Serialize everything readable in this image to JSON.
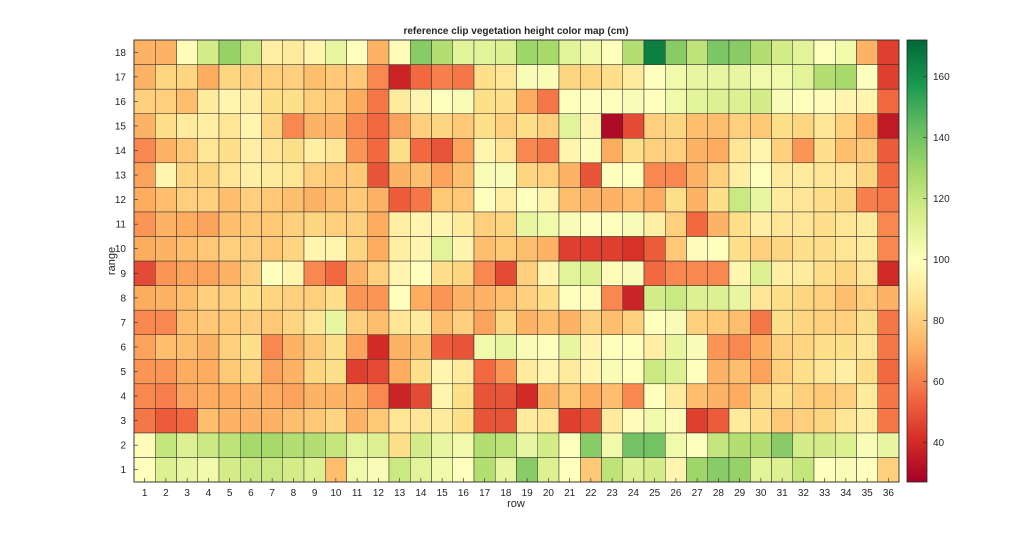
{
  "chart_data": {
    "type": "heatmap",
    "title": "reference clip vegetation height color map (cm)",
    "xlabel": "row",
    "ylabel": "range",
    "x": [
      1,
      2,
      3,
      4,
      5,
      6,
      7,
      8,
      9,
      10,
      11,
      12,
      13,
      14,
      15,
      16,
      17,
      18,
      19,
      20,
      21,
      22,
      23,
      24,
      25,
      26,
      27,
      28,
      29,
      30,
      31,
      32,
      33,
      34,
      35,
      36
    ],
    "y": [
      1,
      2,
      3,
      4,
      5,
      6,
      7,
      8,
      9,
      10,
      11,
      12,
      13,
      14,
      15,
      16,
      17,
      18
    ],
    "colorbar": {
      "min": 27,
      "max": 172,
      "ticks": [
        40,
        60,
        80,
        100,
        120,
        140,
        160
      ],
      "colormap": "RdYlGn"
    },
    "grid": true,
    "values": [
      [
        100,
        112,
        108,
        105,
        115,
        118,
        118,
        115,
        112,
        75,
        105,
        102,
        118,
        110,
        105,
        100,
        125,
        108,
        135,
        112,
        100,
        78,
        122,
        112,
        115,
        95,
        130,
        135,
        132,
        110,
        112,
        120,
        100,
        102,
        100,
        80
      ],
      [
        98,
        120,
        112,
        118,
        122,
        128,
        128,
        125,
        125,
        120,
        110,
        112,
        85,
        115,
        108,
        105,
        125,
        122,
        108,
        115,
        100,
        135,
        105,
        140,
        140,
        105,
        100,
        120,
        125,
        125,
        135,
        115,
        115,
        112,
        102,
        108
      ],
      [
        58,
        52,
        55,
        75,
        72,
        72,
        72,
        75,
        78,
        82,
        72,
        78,
        88,
        88,
        90,
        85,
        50,
        50,
        90,
        88,
        45,
        50,
        90,
        98,
        105,
        98,
        45,
        52,
        90,
        85,
        78,
        80,
        82,
        88,
        92,
        58
      ],
      [
        62,
        60,
        68,
        70,
        70,
        72,
        70,
        68,
        72,
        72,
        70,
        62,
        38,
        48,
        95,
        85,
        50,
        50,
        40,
        72,
        78,
        70,
        75,
        62,
        100,
        90,
        75,
        72,
        70,
        82,
        85,
        80,
        78,
        80,
        90,
        58
      ],
      [
        65,
        65,
        70,
        70,
        78,
        82,
        68,
        72,
        82,
        85,
        45,
        48,
        70,
        85,
        95,
        90,
        55,
        65,
        90,
        95,
        90,
        95,
        102,
        100,
        118,
        112,
        100,
        72,
        75,
        68,
        80,
        85,
        88,
        92,
        85,
        55
      ],
      [
        68,
        75,
        75,
        72,
        80,
        85,
        62,
        72,
        78,
        85,
        68,
        40,
        72,
        75,
        52,
        50,
        105,
        108,
        102,
        100,
        108,
        95,
        100,
        100,
        92,
        108,
        102,
        65,
        62,
        70,
        80,
        82,
        85,
        85,
        88,
        58
      ],
      [
        62,
        62,
        75,
        78,
        78,
        80,
        78,
        82,
        88,
        108,
        80,
        75,
        88,
        90,
        75,
        80,
        68,
        82,
        72,
        75,
        72,
        80,
        75,
        80,
        100,
        102,
        80,
        78,
        75,
        58,
        85,
        82,
        80,
        80,
        85,
        58
      ],
      [
        70,
        72,
        75,
        80,
        80,
        85,
        82,
        80,
        80,
        85,
        65,
        65,
        100,
        70,
        65,
        72,
        72,
        75,
        80,
        85,
        100,
        98,
        62,
        38,
        115,
        118,
        112,
        112,
        108,
        88,
        85,
        82,
        80,
        75,
        80,
        72
      ],
      [
        48,
        65,
        68,
        68,
        72,
        80,
        100,
        95,
        62,
        55,
        72,
        80,
        95,
        100,
        85,
        82,
        62,
        48,
        80,
        95,
        110,
        112,
        98,
        102,
        55,
        62,
        62,
        62,
        95,
        112,
        92,
        90,
        85,
        82,
        88,
        40
      ],
      [
        70,
        72,
        75,
        78,
        80,
        80,
        78,
        82,
        95,
        95,
        82,
        70,
        92,
        95,
        110,
        95,
        75,
        78,
        75,
        72,
        45,
        45,
        45,
        42,
        52,
        78,
        98,
        100,
        85,
        80,
        82,
        85,
        85,
        88,
        90,
        62
      ],
      [
        65,
        72,
        70,
        68,
        75,
        78,
        78,
        80,
        82,
        80,
        80,
        70,
        92,
        95,
        95,
        90,
        80,
        82,
        108,
        105,
        102,
        100,
        100,
        102,
        92,
        80,
        55,
        72,
        85,
        92,
        88,
        88,
        85,
        88,
        90,
        62
      ],
      [
        70,
        75,
        80,
        80,
        75,
        80,
        78,
        75,
        72,
        75,
        78,
        72,
        52,
        58,
        78,
        78,
        100,
        92,
        100,
        95,
        75,
        72,
        72,
        75,
        70,
        85,
        72,
        85,
        118,
        108,
        90,
        88,
        85,
        82,
        60,
        58
      ],
      [
        68,
        95,
        82,
        82,
        88,
        92,
        90,
        88,
        80,
        78,
        78,
        50,
        72,
        75,
        68,
        75,
        102,
        102,
        82,
        80,
        72,
        50,
        100,
        100,
        62,
        62,
        72,
        80,
        92,
        100,
        90,
        90,
        88,
        88,
        82,
        55
      ],
      [
        62,
        72,
        78,
        88,
        85,
        92,
        88,
        85,
        92,
        88,
        65,
        55,
        85,
        55,
        50,
        68,
        95,
        88,
        62,
        58,
        95,
        98,
        70,
        85,
        80,
        80,
        72,
        70,
        88,
        95,
        80,
        65,
        85,
        75,
        78,
        52
      ],
      [
        72,
        85,
        90,
        92,
        88,
        95,
        82,
        62,
        72,
        72,
        62,
        55,
        68,
        80,
        82,
        78,
        85,
        80,
        85,
        80,
        110,
        95,
        30,
        48,
        80,
        82,
        75,
        75,
        80,
        78,
        85,
        82,
        88,
        80,
        70,
        35
      ],
      [
        80,
        80,
        75,
        90,
        95,
        92,
        85,
        85,
        80,
        78,
        70,
        58,
        90,
        95,
        100,
        102,
        85,
        85,
        70,
        58,
        100,
        100,
        100,
        102,
        100,
        105,
        110,
        112,
        112,
        115,
        102,
        100,
        98,
        95,
        95,
        55
      ],
      [
        72,
        82,
        82,
        70,
        82,
        80,
        80,
        80,
        75,
        78,
        78,
        62,
        38,
        55,
        60,
        58,
        85,
        88,
        102,
        102,
        82,
        82,
        85,
        90,
        100,
        105,
        108,
        108,
        108,
        105,
        105,
        110,
        125,
        128,
        100,
        45
      ],
      [
        72,
        72,
        98,
        115,
        132,
        118,
        92,
        90,
        95,
        108,
        100,
        72,
        98,
        135,
        125,
        110,
        110,
        112,
        130,
        128,
        110,
        105,
        100,
        125,
        165,
        135,
        122,
        138,
        135,
        125,
        115,
        110,
        100,
        105,
        72,
        45
      ]
    ]
  }
}
